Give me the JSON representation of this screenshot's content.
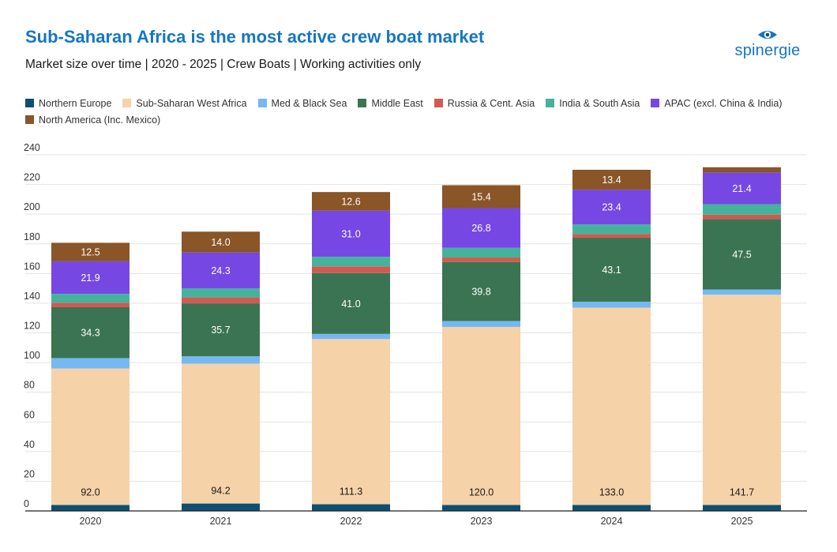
{
  "header": {
    "title": "Sub-Saharan Africa is the most active crew boat market",
    "subtitle": "Market size over time | 2020 - 2025 | Crew Boats | Working activities only"
  },
  "brand": {
    "name": "spinergie",
    "color": "#1677c0"
  },
  "chart_data": {
    "type": "bar",
    "stacked": true,
    "title": "Sub-Saharan Africa is the most active crew boat market",
    "subtitle": "Market size over time | 2020 - 2025 | Crew Boats | Working activities only",
    "xlabel": "",
    "ylabel": "",
    "ylim": [
      0,
      240
    ],
    "yticks": [
      0,
      20,
      40,
      60,
      80,
      100,
      120,
      140,
      160,
      180,
      200,
      220,
      240
    ],
    "grid": true,
    "legend_position": "top",
    "categories": [
      "2020",
      "2021",
      "2022",
      "2023",
      "2024",
      "2025"
    ],
    "series": [
      {
        "name": "Northern Europe",
        "color": "#0c4f72",
        "values": [
          4,
          5,
          4.5,
          4,
          4,
          4
        ],
        "show_labels": false
      },
      {
        "name": "Sub-Saharan West Africa",
        "color": "#f6d2a8",
        "values": [
          92.0,
          94.2,
          111.3,
          120.0,
          133.0,
          141.7
        ],
        "show_labels": true,
        "label_position": "bottom",
        "label_color": "#1a1a1a"
      },
      {
        "name": "Med & Black Sea",
        "color": "#75b8f2",
        "values": [
          7,
          5,
          3.5,
          4,
          4,
          3.5
        ],
        "show_labels": false
      },
      {
        "name": "Middle East",
        "color": "#3b7452",
        "values": [
          34.3,
          35.7,
          41.0,
          39.8,
          43.1,
          47.5
        ],
        "show_labels": true,
        "label_position": "center",
        "label_color": "#ffffff"
      },
      {
        "name": "Russia & Cent. Asia",
        "color": "#d25a50",
        "values": [
          3,
          4,
          4.5,
          3,
          2.5,
          3
        ],
        "show_labels": false
      },
      {
        "name": "India & South Asia",
        "color": "#45b39c",
        "values": [
          6,
          6,
          6.5,
          6.5,
          6.5,
          7
        ],
        "show_labels": false
      },
      {
        "name": "APAC (excl. China & India)",
        "color": "#7747e3",
        "values": [
          21.9,
          24.3,
          31.0,
          26.8,
          23.4,
          21.4
        ],
        "show_labels": true,
        "label_position": "center",
        "label_color": "#ffffff"
      },
      {
        "name": "North America (Inc. Mexico)",
        "color": "#8a5527",
        "values": [
          12.5,
          14.0,
          12.6,
          15.4,
          13.4,
          3.5
        ],
        "show_labels": true,
        "label_position": "center",
        "label_color": "#ffffff",
        "labels": [
          "12.5",
          "14.0",
          "12.6",
          "15.4",
          "13.4",
          ""
        ]
      }
    ]
  }
}
